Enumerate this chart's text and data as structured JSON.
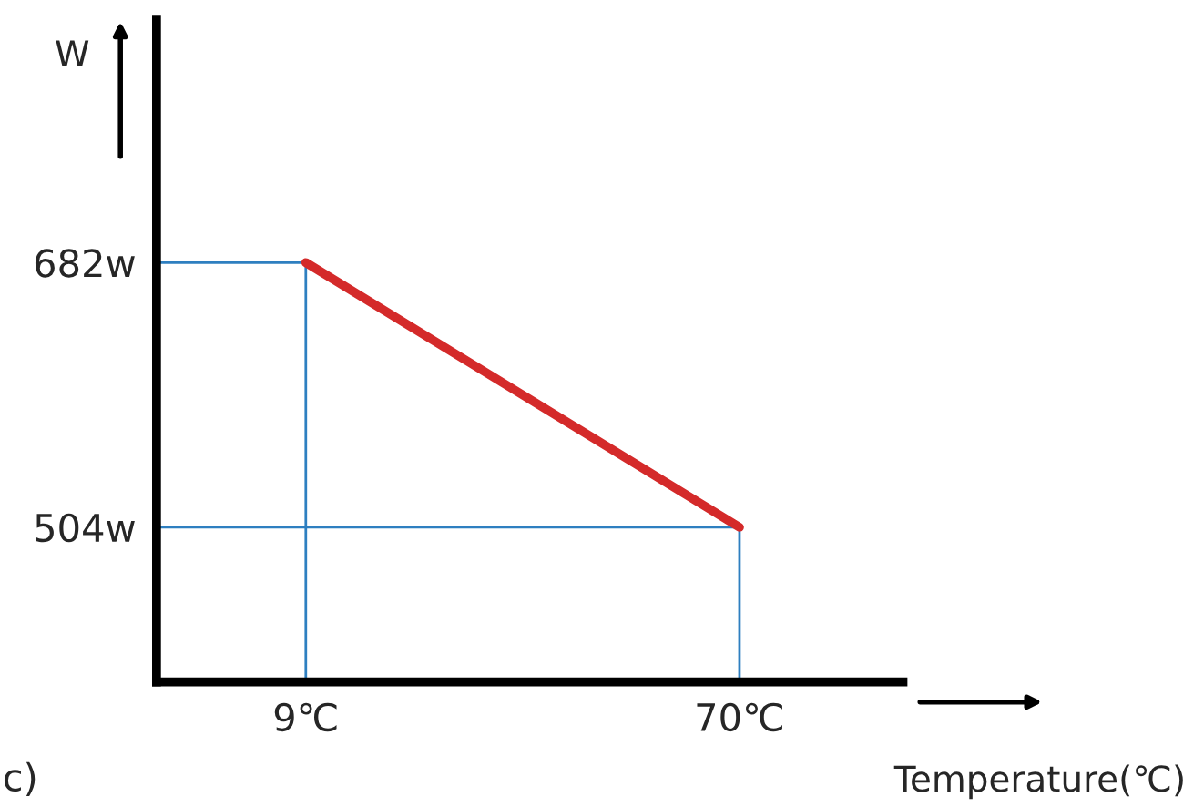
{
  "chart_data": {
    "type": "line",
    "xlabel": "Temperature(℃)",
    "ylabel": "W",
    "x": [
      9,
      70
    ],
    "series": [
      {
        "color": "#d42a2a",
        "values": [
          682,
          504
        ]
      }
    ],
    "xlim": [
      -12,
      93
    ],
    "ylim": [
      400,
      845
    ],
    "xticks": [
      {
        "value": 9,
        "label": "9℃"
      },
      {
        "value": 70,
        "label": "70℃"
      }
    ],
    "yticks": [
      {
        "value": 682,
        "label": "682w"
      },
      {
        "value": 504,
        "label": "504w"
      }
    ],
    "ref_lines": [
      {
        "axis": "y",
        "value": 682,
        "label": null,
        "color": "#2e7fc0"
      },
      {
        "axis": "y",
        "value": 504,
        "label": null,
        "color": "#2e7fc0"
      },
      {
        "axis": "x",
        "value": 9,
        "label": null,
        "color": "#2e7fc0"
      },
      {
        "axis": "x",
        "value": 70,
        "label": null,
        "color": "#2e7fc0"
      }
    ],
    "annotations": [
      "c)"
    ],
    "grid": false,
    "marker": "none",
    "line_style": "solid"
  }
}
